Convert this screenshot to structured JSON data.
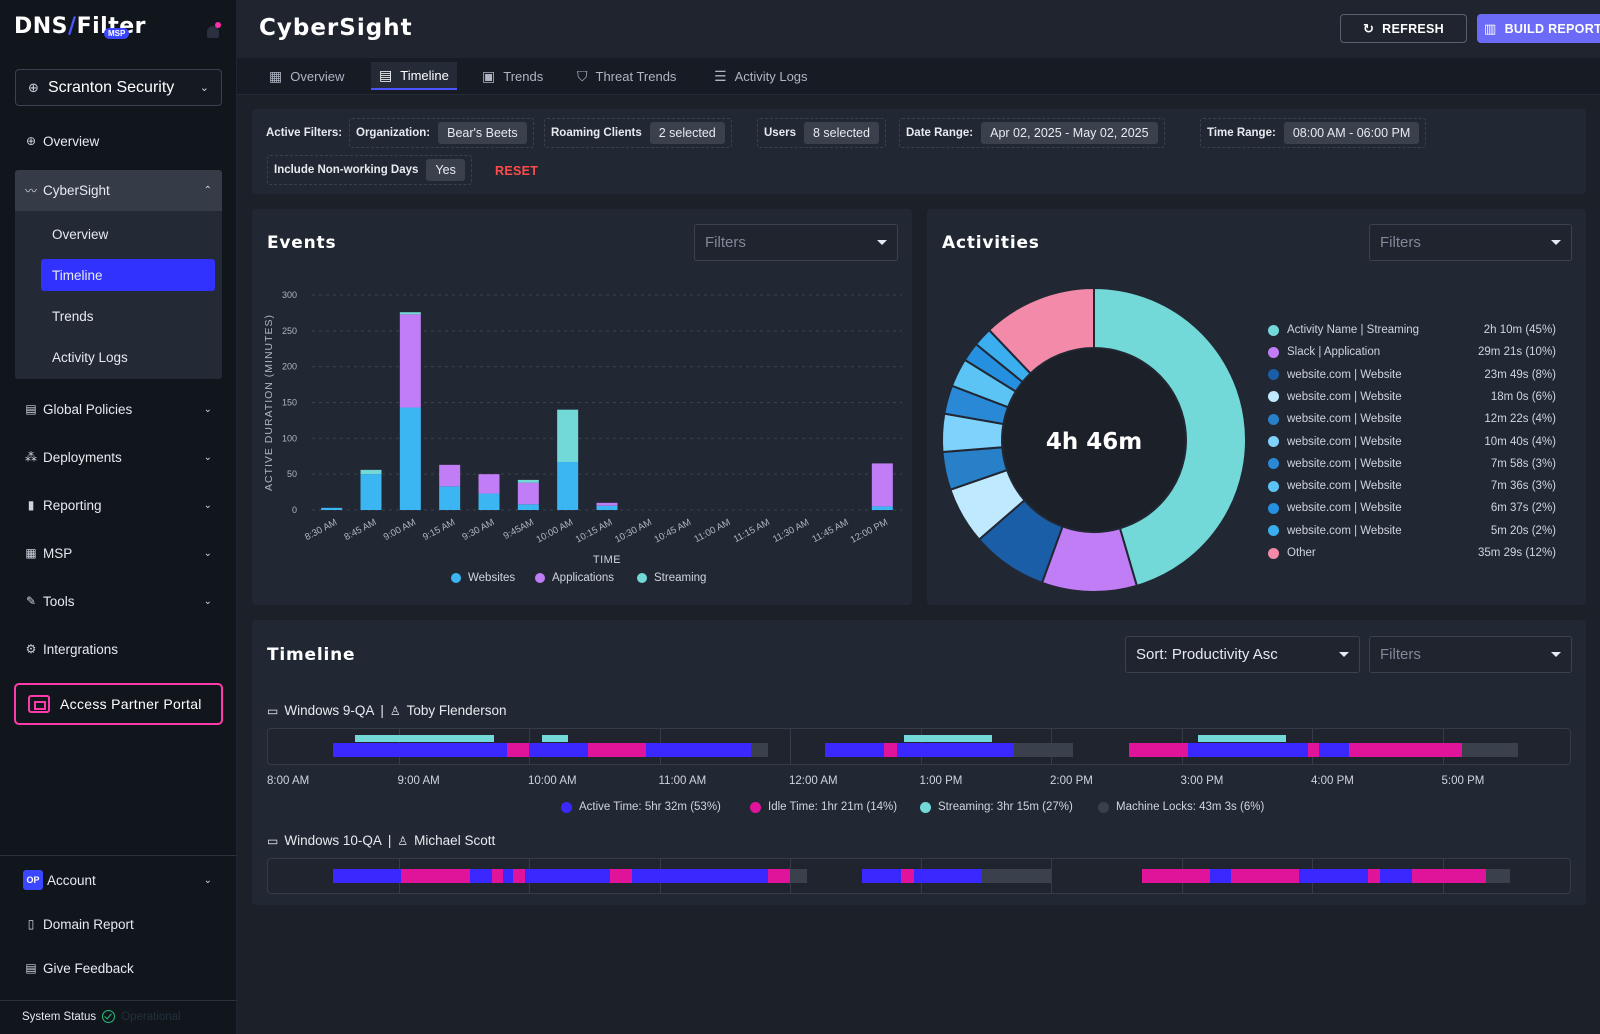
{
  "brand": {
    "logo_a": "DNS",
    "logo_b": "Filter",
    "badge": "MSP"
  },
  "org_selector": {
    "value": "Scranton Security"
  },
  "nav": {
    "overview": "Overview",
    "cybersight": "CyberSight",
    "cybersight_sub": [
      "Overview",
      "Timeline",
      "Trends",
      "Activity Logs"
    ],
    "global_policies": "Global Policies",
    "deployments": "Deployments",
    "reporting": "Reporting",
    "msp": "MSP",
    "tools": "Tools",
    "integrations": "Intergrations",
    "partner_portal": "Access Partner Portal",
    "account_badge": "OP",
    "account": "Account",
    "domain_report": "Domain Report",
    "feedback": "Give Feedback",
    "system_status": "System Status",
    "system_status_value": "Operational"
  },
  "header": {
    "title": "CyberSight",
    "refresh": "REFRESH",
    "build_report": "BUILD REPORT"
  },
  "tabs": [
    "Overview",
    "Timeline",
    "Trends",
    "Threat Trends",
    "Activity Logs"
  ],
  "filters": {
    "label": "Active Filters:",
    "organization": {
      "label": "Organization:",
      "value": "Bear's Beets"
    },
    "roaming": {
      "label": "Roaming Clients",
      "value": "2 selected"
    },
    "users": {
      "label": "Users",
      "value": "8 selected"
    },
    "date_range": {
      "label": "Date Range:",
      "value": "Apr 02, 2025 - May 02, 2025"
    },
    "time_range": {
      "label": "Time Range:",
      "value": "08:00 AM - 06:00 PM"
    },
    "non_working": {
      "label": "Include Non-working Days",
      "value": "Yes"
    },
    "reset": "RESET"
  },
  "events": {
    "title": "Events",
    "filter_placeholder": "Filters",
    "legend": [
      "Websites",
      "Applications",
      "Streaming"
    ]
  },
  "activities": {
    "title": "Activities",
    "filter_placeholder": "Filters",
    "total": "4h 46m",
    "legend": [
      {
        "name": "Activity Name | Streaming",
        "value": "2h 10m (45%)",
        "color": "#73d8d8"
      },
      {
        "name": "Slack | Application",
        "value": "29m 21s (10%)",
        "color": "#c17df5"
      },
      {
        "name": "website.com | Website",
        "value": "23m 49s (8%)",
        "color": "#1b5ea8"
      },
      {
        "name": "website.com | Website",
        "value": "18m 0s (6%)",
        "color": "#bfe9ff"
      },
      {
        "name": "website.com | Website",
        "value": "12m 22s (4%)",
        "color": "#2780c8"
      },
      {
        "name": "website.com | Website",
        "value": "10m 40s (4%)",
        "color": "#7fd2fb"
      },
      {
        "name": "website.com | Website",
        "value": "7m 58s (3%)",
        "color": "#2a89d6"
      },
      {
        "name": "website.com | Website",
        "value": "7m 36s (3%)",
        "color": "#5cc4f5"
      },
      {
        "name": "website.com | Website",
        "value": "6m 37s (2%)",
        "color": "#2590e0"
      },
      {
        "name": "website.com | Website",
        "value": "5m 20s (2%)",
        "color": "#3aaeef"
      },
      {
        "name": "Other",
        "value": "35m 29s (12%)",
        "color": "#f48aaa"
      }
    ]
  },
  "chart_data": [
    {
      "type": "bar",
      "stacked": true,
      "title": "Events",
      "xlabel": "TIME",
      "ylabel": "ACTIVE DURATION (MINUTES)",
      "ylim": [
        0,
        300
      ],
      "yticks": [
        0,
        50,
        100,
        150,
        200,
        250,
        300
      ],
      "grid": true,
      "legend_position": "bottom",
      "categories": [
        "8:30 AM",
        "8:45 AM",
        "9:00 AM",
        "9:15 AM",
        "9:30 AM",
        "9:45AM",
        "10:00 AM",
        "10:15 AM",
        "10:30 AM",
        "10:45 AM",
        "11:00 AM",
        "11:15 AM",
        "11:30 AM",
        "11:45 AM",
        "12:00 PM"
      ],
      "series": [
        {
          "name": "Websites",
          "color": "#3bb6f2",
          "values": [
            3,
            50,
            143,
            33,
            23,
            8,
            67,
            6,
            0,
            0,
            0,
            0,
            0,
            0,
            5
          ]
        },
        {
          "name": "Applications",
          "color": "#c17df5",
          "values": [
            0,
            0,
            130,
            30,
            27,
            30,
            0,
            4,
            0,
            0,
            0,
            0,
            0,
            0,
            60
          ]
        },
        {
          "name": "Streaming",
          "color": "#73d8d8",
          "values": [
            0,
            6,
            3,
            0,
            0,
            4,
            73,
            0,
            0,
            0,
            0,
            0,
            0,
            0,
            0
          ]
        }
      ]
    },
    {
      "type": "pie",
      "donut": true,
      "title": "Activities",
      "center_label": "4h 46m",
      "legend_position": "right",
      "labels": [
        "Activity Name | Streaming",
        "Slack | Application",
        "website.com | Website",
        "website.com | Website",
        "website.com | Website",
        "website.com | Website",
        "website.com | Website",
        "website.com | Website",
        "website.com | Website",
        "website.com | Website",
        "Other"
      ],
      "values": [
        45,
        10,
        8,
        6,
        4,
        4,
        3,
        3,
        2,
        2,
        12
      ],
      "colors": [
        "#73d8d8",
        "#c17df5",
        "#1b5ea8",
        "#bfe9ff",
        "#2780c8",
        "#7fd2fb",
        "#2a89d6",
        "#5cc4f5",
        "#2590e0",
        "#3aaeef",
        "#f48aaa"
      ]
    }
  ],
  "timeline": {
    "title": "Timeline",
    "sort": "Sort: Productivity Asc",
    "filter_placeholder": "Filters",
    "ticks": [
      "8:00 AM",
      "9:00 AM",
      "10:00 AM",
      "11:00 AM",
      "12:00 AM",
      "1:00 PM",
      "2:00 PM",
      "3:00 PM",
      "4:00 PM",
      "5:00 PM"
    ],
    "legend": [
      {
        "label": "Active Time: 5hr 32m (53%)",
        "color": "#3a28ff"
      },
      {
        "label": "Idle Time: 1hr 21m (14%)",
        "color": "#e0149a"
      },
      {
        "label": "Streaming: 3hr 15m (27%)",
        "color": "#73d8d8"
      },
      {
        "label": "Machine Locks: 43m 3s (6%)",
        "color": "#3a404c"
      }
    ],
    "devices": [
      {
        "device": "Windows 9-QA",
        "user": "Toby Flenderson",
        "segments": [
          {
            "kind": "active",
            "start": 0.5,
            "end": 1.83
          },
          {
            "kind": "idle",
            "start": 1.83,
            "end": 2.0
          },
          {
            "kind": "active",
            "start": 2.0,
            "end": 2.45
          },
          {
            "kind": "idle",
            "start": 2.45,
            "end": 2.9
          },
          {
            "kind": "active",
            "start": 2.9,
            "end": 3.7
          },
          {
            "kind": "lock",
            "start": 3.7,
            "end": 3.83
          },
          {
            "kind": "active",
            "start": 4.27,
            "end": 4.72
          },
          {
            "kind": "idle",
            "start": 4.72,
            "end": 4.82
          },
          {
            "kind": "active",
            "start": 4.82,
            "end": 5.72
          },
          {
            "kind": "lock",
            "start": 5.72,
            "end": 6.17
          },
          {
            "kind": "idle",
            "start": 6.6,
            "end": 7.05
          },
          {
            "kind": "active",
            "start": 7.05,
            "end": 7.97
          },
          {
            "kind": "idle",
            "start": 7.97,
            "end": 8.05
          },
          {
            "kind": "active",
            "start": 8.05,
            "end": 8.28
          },
          {
            "kind": "idle",
            "start": 8.28,
            "end": 9.15
          },
          {
            "kind": "lock",
            "start": 9.15,
            "end": 9.58
          }
        ],
        "streaming": [
          {
            "start": 0.67,
            "end": 1.73
          },
          {
            "start": 2.1,
            "end": 2.3
          },
          {
            "start": 4.87,
            "end": 5.55
          },
          {
            "start": 7.13,
            "end": 7.8
          }
        ]
      },
      {
        "device": "Windows 10-QA",
        "user": "Michael Scott",
        "segments": [
          {
            "kind": "active",
            "start": 0.5,
            "end": 1.02
          },
          {
            "kind": "idle",
            "start": 1.02,
            "end": 1.55
          },
          {
            "kind": "active",
            "start": 1.55,
            "end": 1.72
          },
          {
            "kind": "idle",
            "start": 1.72,
            "end": 1.8
          },
          {
            "kind": "active",
            "start": 1.8,
            "end": 1.88
          },
          {
            "kind": "idle",
            "start": 1.88,
            "end": 1.97
          },
          {
            "kind": "active",
            "start": 1.97,
            "end": 2.62
          },
          {
            "kind": "idle",
            "start": 2.62,
            "end": 2.79
          },
          {
            "kind": "active",
            "start": 2.79,
            "end": 3.83
          },
          {
            "kind": "idle",
            "start": 3.83,
            "end": 4.0
          },
          {
            "kind": "lock",
            "start": 4.0,
            "end": 4.13
          },
          {
            "kind": "active",
            "start": 4.55,
            "end": 4.85
          },
          {
            "kind": "idle",
            "start": 4.85,
            "end": 4.95
          },
          {
            "kind": "active",
            "start": 4.95,
            "end": 5.47
          },
          {
            "kind": "lock",
            "start": 5.47,
            "end": 6.0
          },
          {
            "kind": "idle",
            "start": 6.7,
            "end": 7.22
          },
          {
            "kind": "active",
            "start": 7.22,
            "end": 7.38
          },
          {
            "kind": "idle",
            "start": 7.38,
            "end": 7.9
          },
          {
            "kind": "active",
            "start": 7.9,
            "end": 8.43
          },
          {
            "kind": "idle",
            "start": 8.43,
            "end": 8.52
          },
          {
            "kind": "active",
            "start": 8.52,
            "end": 8.77
          },
          {
            "kind": "idle",
            "start": 8.77,
            "end": 9.33
          },
          {
            "kind": "lock",
            "start": 9.33,
            "end": 9.52
          }
        ]
      }
    ]
  }
}
